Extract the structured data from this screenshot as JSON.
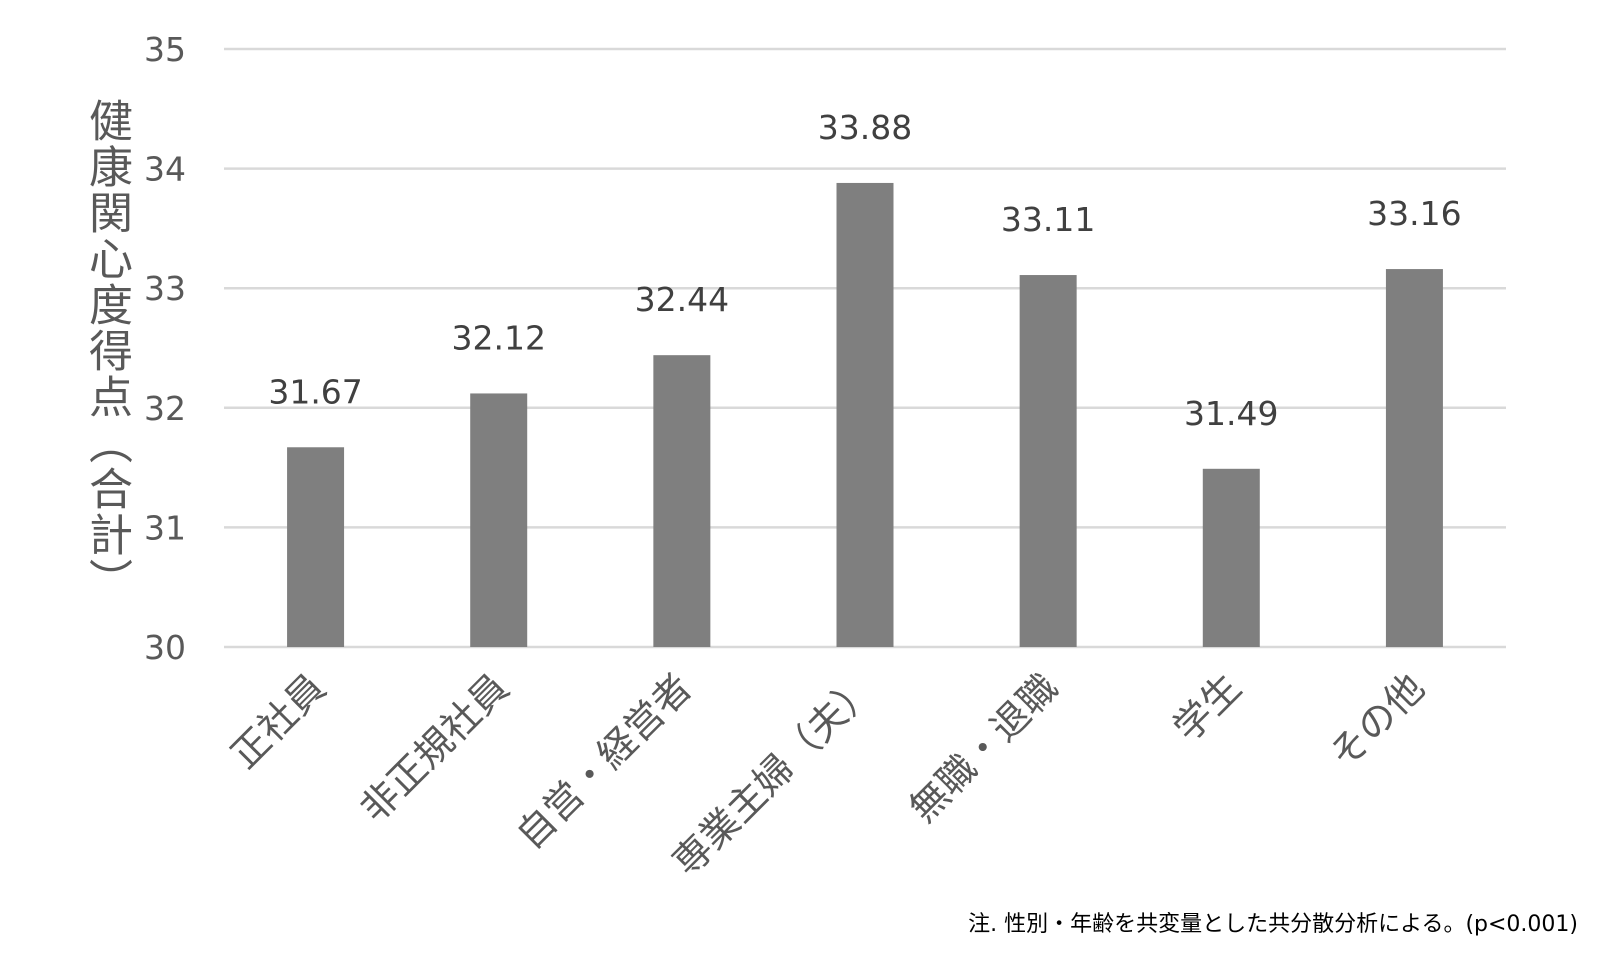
{
  "colors": {
    "bar": "#7f7f7f",
    "grid": "#d9d9d9",
    "tick_text": "#595959",
    "data_label_text": "#404040"
  },
  "chart_data": {
    "type": "bar",
    "title": "",
    "xlabel": "",
    "ylabel": "健康関心度得点（合計）",
    "categories": [
      "正社員",
      "非正規社員",
      "自営・経営者",
      "専業主婦（夫）",
      "無職・退職",
      "学生",
      "その他"
    ],
    "values": [
      31.67,
      32.12,
      32.44,
      33.88,
      33.11,
      31.49,
      33.16
    ],
    "value_labels": [
      "31.67",
      "32.12",
      "32.44",
      "33.88",
      "33.11",
      "31.49",
      "33.16"
    ],
    "ylim": [
      30,
      35
    ],
    "yticks": [
      "30",
      "31",
      "32",
      "33",
      "34",
      "35"
    ],
    "grid": true,
    "legend": "none"
  },
  "footnote": "注. 性別・年齢を共変量とした共分散分析による。(p<0.001)"
}
